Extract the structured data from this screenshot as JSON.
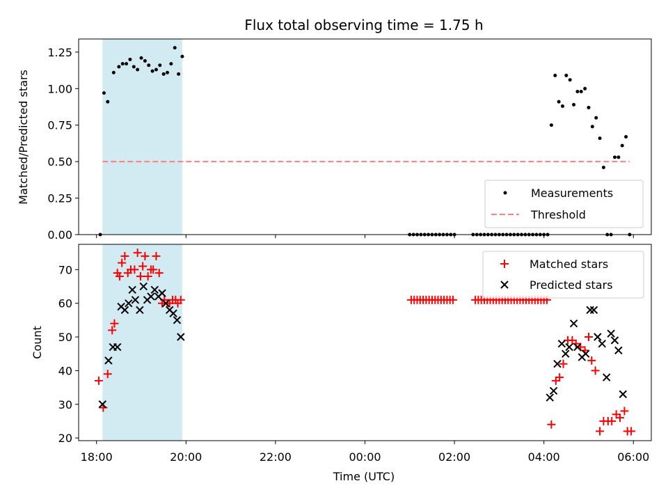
{
  "chart_data": [
    {
      "type": "scatter",
      "title": "Flux total observing time = 1.75 h",
      "xlabel": "",
      "ylabel": "Matched/Predicted stars",
      "ylim": [
        0.0,
        1.34
      ],
      "xlim_hours": [
        17.6,
        30.4
      ],
      "yticks": [
        "0.00",
        "0.25",
        "0.50",
        "0.75",
        "1.00",
        "1.25"
      ],
      "grid": false,
      "legend_position": "lower-right",
      "legend": [
        "Measurements",
        "Threshold"
      ],
      "shaded_region": {
        "start": "18:08",
        "end": "19:55",
        "color": "#add8e6"
      },
      "threshold": {
        "value": 0.5,
        "start": "18:08",
        "end": "05:55",
        "style": "dashed",
        "color": "#ff7f7f"
      },
      "series": [
        {
          "name": "Measurements",
          "marker": "dot",
          "color": "#000000",
          "x": [
            "18:05",
            "18:10",
            "18:15",
            "18:23",
            "18:30",
            "18:35",
            "18:40",
            "18:45",
            "18:50",
            "18:55",
            "19:00",
            "19:05",
            "19:10",
            "19:15",
            "19:20",
            "19:25",
            "19:30",
            "19:35",
            "19:40",
            "19:45",
            "19:50",
            "19:55",
            "01:00",
            "01:05",
            "01:10",
            "01:15",
            "01:20",
            "01:25",
            "01:30",
            "01:35",
            "01:40",
            "01:45",
            "01:50",
            "01:55",
            "02:00",
            "02:25",
            "02:30",
            "02:35",
            "02:40",
            "02:45",
            "02:50",
            "02:55",
            "03:00",
            "03:05",
            "03:10",
            "03:15",
            "03:20",
            "03:25",
            "03:30",
            "03:35",
            "03:40",
            "03:45",
            "03:50",
            "03:55",
            "04:00",
            "04:05",
            "04:10",
            "04:15",
            "04:20",
            "04:25",
            "04:30",
            "04:35",
            "04:40",
            "04:45",
            "04:50",
            "04:55",
            "05:00",
            "05:05",
            "05:10",
            "05:15",
            "05:20",
            "05:25",
            "05:30",
            "05:35",
            "05:40",
            "05:45",
            "05:50",
            "05:55"
          ],
          "y": [
            0.0,
            0.97,
            0.91,
            1.11,
            1.15,
            1.17,
            1.17,
            1.2,
            1.15,
            1.13,
            1.21,
            1.19,
            1.16,
            1.12,
            1.13,
            1.16,
            1.1,
            1.11,
            1.17,
            1.28,
            1.1,
            1.22,
            0.0,
            0.0,
            0.0,
            0.0,
            0.0,
            0.0,
            0.0,
            0.0,
            0.0,
            0.0,
            0.0,
            0.0,
            0.0,
            0.0,
            0.0,
            0.0,
            0.0,
            0.0,
            0.0,
            0.0,
            0.0,
            0.0,
            0.0,
            0.0,
            0.0,
            0.0,
            0.0,
            0.0,
            0.0,
            0.0,
            0.0,
            0.0,
            0.0,
            0.0,
            0.75,
            1.09,
            0.91,
            0.88,
            1.09,
            1.06,
            0.89,
            0.98,
            0.98,
            1.0,
            0.87,
            0.74,
            0.8,
            0.66,
            0.46,
            0.0,
            0.0,
            0.53,
            0.53,
            0.61,
            0.67,
            0.0
          ]
        }
      ]
    },
    {
      "type": "scatter",
      "title": "",
      "xlabel": "Time (UTC)",
      "ylabel": "Count",
      "ylim": [
        19.2,
        77.5
      ],
      "xlim_hours": [
        17.6,
        30.4
      ],
      "yticks": [
        "20",
        "30",
        "40",
        "50",
        "60",
        "70"
      ],
      "xticks": [
        "18:00",
        "20:00",
        "22:00",
        "00:00",
        "02:00",
        "04:00",
        "06:00"
      ],
      "grid": false,
      "legend_position": "upper-right",
      "legend": [
        "Matched stars",
        "Predicted stars"
      ],
      "shaded_region": {
        "start": "18:08",
        "end": "19:55",
        "color": "#add8e6"
      },
      "series": [
        {
          "name": "Matched stars",
          "marker": "plus",
          "color": "#ff0000",
          "x": [
            "18:03",
            "18:09",
            "18:15",
            "18:21",
            "18:24",
            "18:28",
            "18:31",
            "18:34",
            "18:38",
            "18:42",
            "18:46",
            "18:51",
            "18:55",
            "18:59",
            "19:02",
            "19:05",
            "19:09",
            "19:13",
            "19:16",
            "19:20",
            "19:24",
            "19:28",
            "19:31",
            "19:35",
            "19:38",
            "19:42",
            "19:46",
            "19:49",
            "19:53",
            "01:02",
            "01:06",
            "01:10",
            "01:14",
            "01:18",
            "01:22",
            "01:26",
            "01:30",
            "01:34",
            "01:38",
            "01:42",
            "01:46",
            "01:50",
            "01:54",
            "01:58",
            "02:28",
            "02:32",
            "02:36",
            "02:40",
            "02:44",
            "02:48",
            "02:52",
            "02:56",
            "03:00",
            "03:04",
            "03:08",
            "03:12",
            "03:16",
            "03:20",
            "03:24",
            "03:28",
            "03:32",
            "03:36",
            "03:40",
            "03:44",
            "03:48",
            "03:52",
            "03:56",
            "04:00",
            "04:04",
            "04:10",
            "04:16",
            "04:21",
            "04:26",
            "04:32",
            "04:38",
            "04:43",
            "04:49",
            "04:55",
            "05:00",
            "05:04",
            "05:09",
            "05:15",
            "05:20",
            "05:26",
            "05:31",
            "05:37",
            "05:42",
            "05:48",
            "05:52",
            "05:57"
          ],
          "y": [
            37,
            29,
            39,
            52,
            54,
            69,
            68,
            72,
            74,
            69,
            70,
            70,
            75,
            68,
            71,
            74,
            68,
            70,
            70,
            74,
            69,
            60,
            61,
            60,
            60,
            61,
            61,
            60,
            61,
            61,
            61,
            61,
            61,
            61,
            61,
            61,
            61,
            61,
            61,
            61,
            61,
            61,
            61,
            61,
            61,
            61,
            61,
            61,
            61,
            61,
            61,
            61,
            61,
            61,
            61,
            61,
            61,
            61,
            61,
            61,
            61,
            61,
            61,
            61,
            61,
            61,
            61,
            61,
            61,
            24,
            37,
            38,
            42,
            49,
            49,
            48,
            47,
            46,
            50,
            43,
            40,
            22,
            25,
            25,
            25,
            27,
            26,
            28,
            22,
            22
          ]
        },
        {
          "name": "Predicted stars",
          "marker": "x",
          "color": "#000000",
          "x": [
            "18:08",
            "18:16",
            "18:22",
            "18:28",
            "18:33",
            "18:38",
            "18:43",
            "18:48",
            "18:52",
            "18:58",
            "19:03",
            "19:08",
            "19:13",
            "19:18",
            "19:23",
            "19:28",
            "19:33",
            "19:38",
            "19:43",
            "19:48",
            "19:53",
            "04:08",
            "04:13",
            "04:18",
            "04:24",
            "04:29",
            "04:34",
            "04:40",
            "04:45",
            "04:51",
            "04:56",
            "05:02",
            "05:07",
            "05:12",
            "05:18",
            "05:24",
            "05:30",
            "05:35",
            "05:40",
            "05:46"
          ],
          "y": [
            30,
            43,
            47,
            47,
            59,
            58,
            60,
            64,
            61,
            58,
            65,
            61,
            62,
            64,
            62,
            63,
            60,
            58,
            57,
            55,
            50,
            32,
            34,
            42,
            48,
            45,
            47,
            54,
            47,
            44,
            45,
            58,
            58,
            50,
            48,
            38,
            51,
            49,
            46,
            33
          ]
        }
      ]
    }
  ]
}
